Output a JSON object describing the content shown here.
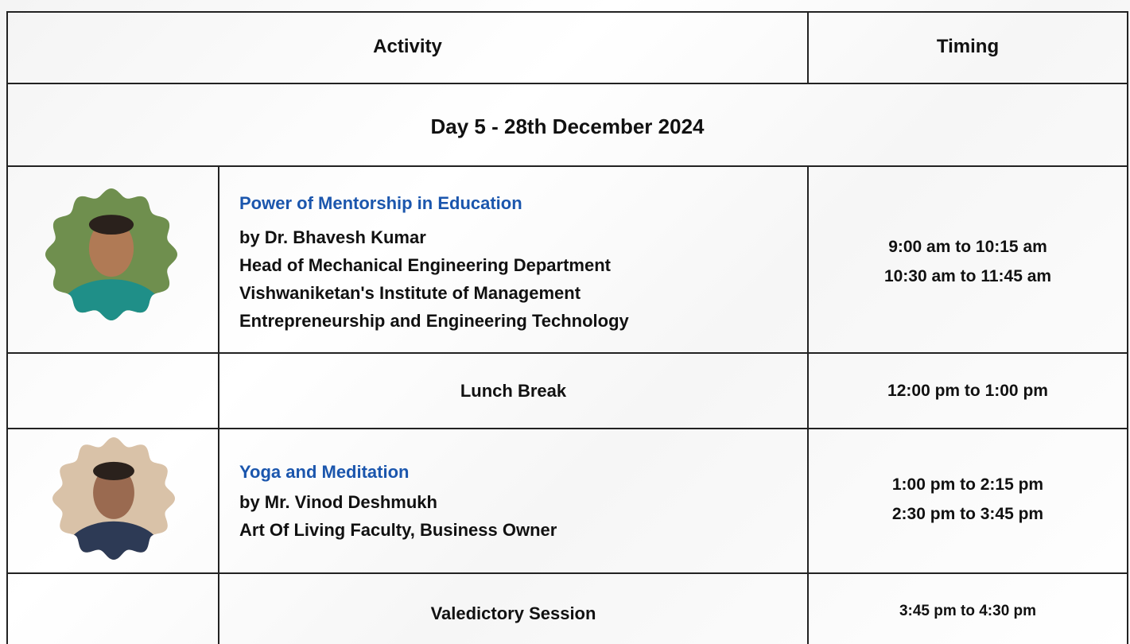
{
  "table": {
    "header": [
      "Activity",
      "Timing"
    ],
    "day": "Day 5 - 28th December 2024",
    "rows": [
      {
        "title": "Power of Mentorship in Education",
        "lines": [
          "by Dr. Bhavesh Kumar",
          "Head of Mechanical Engineering Department",
          "Vishwaniketan's Institute of Management",
          "Entrepreneurship and Engineering Technology"
        ],
        "timing": [
          "9:00 am to 10:15 am",
          "10:30 am to 11:45 am"
        ]
      },
      {
        "activity": "Lunch Break",
        "timing": [
          "12:00 pm to 1:00 pm"
        ]
      },
      {
        "title": "Yoga and Meditation",
        "lines": [
          "by Mr. Vinod Deshmukh",
          "Art Of Living Faculty, Business Owner"
        ],
        "timing": [
          "1:00 pm to 2:15 pm",
          "2:30 pm to 3:45 pm"
        ]
      },
      {
        "activity": "Valedictory Session",
        "timing": [
          "3:45 pm to 4:30 pm"
        ]
      }
    ]
  }
}
